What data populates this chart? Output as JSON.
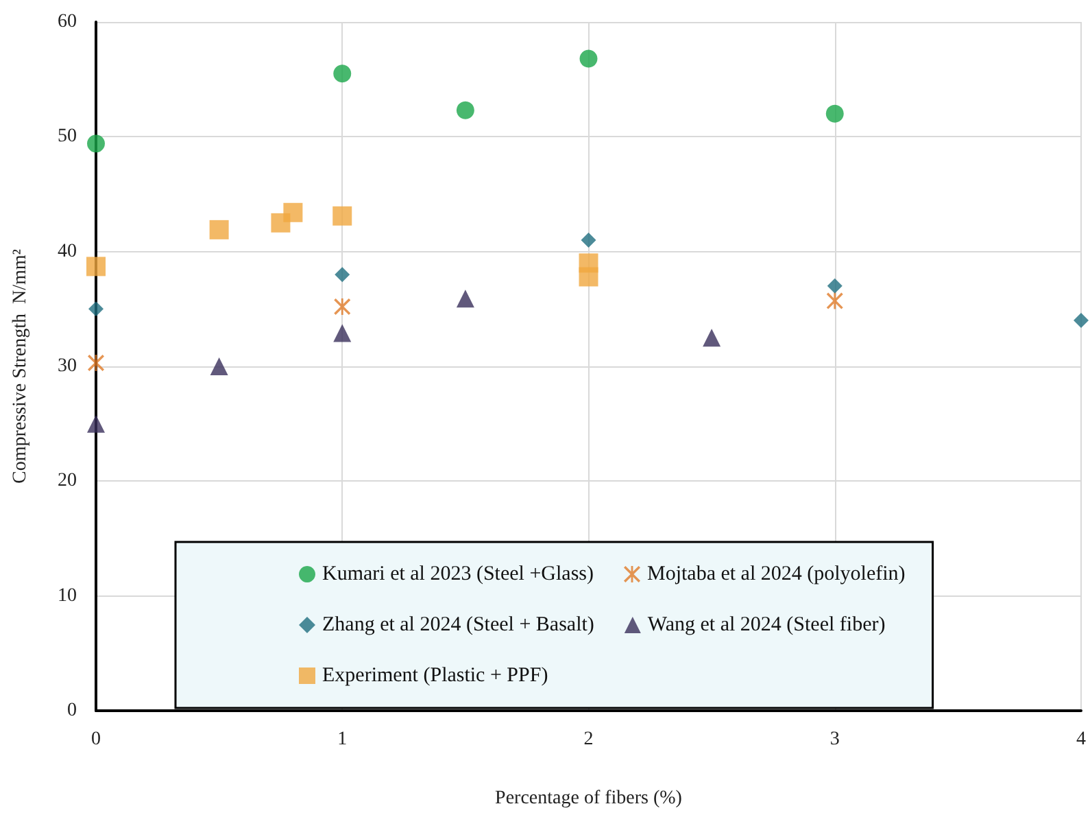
{
  "chart_data": {
    "type": "scatter",
    "xlabel": "Percentage of fibers (%)",
    "ylabel": "Compressive Strength  N/mm²",
    "xlim": [
      0,
      4
    ],
    "xticks": [
      0,
      1,
      2,
      3,
      4
    ],
    "ylim": [
      0,
      60
    ],
    "yticks": [
      0,
      10,
      20,
      30,
      40,
      50,
      60
    ],
    "grid": true,
    "legend": "bottom",
    "series": [
      {
        "name": "Kumari et al 2023 (Steel +Glass)",
        "color": "#1aa64a",
        "marker": "circle",
        "x": [
          0,
          1,
          1.5,
          2,
          3
        ],
        "values": [
          49.4,
          55.5,
          52.3,
          56.8,
          52.0
        ]
      },
      {
        "name": "Mojtaba et al 2024 (polyolefin)",
        "color": "#e07b28",
        "marker": "cross",
        "x": [
          0,
          1,
          3
        ],
        "values": [
          30.3,
          35.2,
          35.7
        ]
      },
      {
        "name": "Zhang et al 2024 (Steel + Basalt)",
        "color": "#1f6e80",
        "marker": "diamond",
        "x": [
          0,
          1,
          2,
          3,
          4
        ],
        "values": [
          35.0,
          38.0,
          41.0,
          37.0,
          34.0
        ]
      },
      {
        "name": "Wang et al 2024 (Steel fiber)",
        "color": "#3a2f5b",
        "marker": "triangle",
        "x": [
          0,
          0.5,
          1,
          1.5,
          2.5
        ],
        "values": [
          25.0,
          30.0,
          32.9,
          35.9,
          32.5
        ]
      },
      {
        "name": "Experiment (Plastic + PPF)",
        "color": "#f0a840",
        "marker": "square",
        "x": [
          0,
          0.5,
          0.75,
          0.8,
          1,
          2,
          2
        ],
        "values": [
          38.7,
          41.9,
          42.5,
          43.4,
          43.1,
          39.0,
          37.8
        ]
      }
    ]
  }
}
